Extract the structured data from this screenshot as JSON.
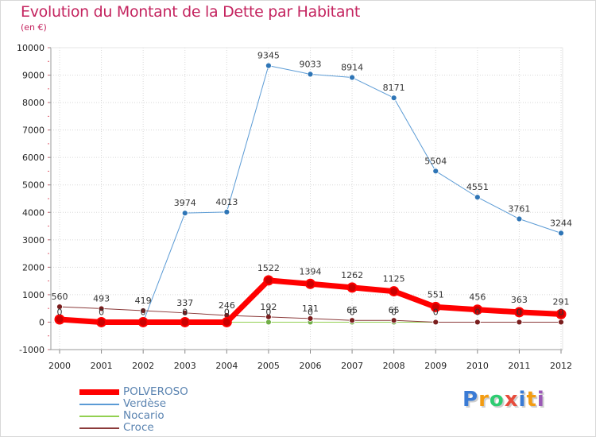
{
  "header": {
    "title": "Evolution du Montant de la Dette par Habitant",
    "subtitle": "(en €)"
  },
  "logo": {
    "text": "Proxiti",
    "colors": [
      "#3a7bd5",
      "#f39c12",
      "#2ecc71",
      "#e74c3c",
      "#3a7bd5",
      "#f39c12",
      "#9b59b6"
    ]
  },
  "chart_data": {
    "type": "line",
    "title": "Evolution du Montant de la Dette par Habitant",
    "subtitle": "(en €)",
    "x": [
      "2000",
      "2001",
      "2002",
      "2003",
      "2004",
      "2005",
      "2006",
      "2007",
      "2008",
      "2009",
      "2010",
      "2011",
      "2012"
    ],
    "ylim": [
      -1000,
      10000
    ],
    "yticks": [
      "-1000",
      "0",
      "1000",
      "2000",
      "3000",
      "4000",
      "5000",
      "6000",
      "7000",
      "8000",
      "9000",
      "10000"
    ],
    "legend_position": "bottom-left",
    "series": [
      {
        "name": "Verdèse",
        "color": "#5b9bd5",
        "marker": "#2e75b6",
        "width": 1,
        "values": [
          0,
          0,
          0,
          3974,
          4013,
          9345,
          9033,
          8914,
          8171,
          5504,
          4551,
          3761,
          3244
        ],
        "labels": [
          "",
          "",
          "",
          "3974",
          "4013",
          "9345",
          "9033",
          "8914",
          "8171",
          "5504",
          "4551",
          "3761",
          "3244"
        ]
      },
      {
        "name": "Nocario",
        "color": "#92d050",
        "marker": "#70ad47",
        "width": 1,
        "values": [
          0,
          0,
          0,
          0,
          0,
          0,
          0,
          0,
          0,
          0,
          0,
          0,
          0
        ],
        "labels": [
          "0",
          "0",
          "0",
          "0",
          "0",
          "0",
          "0",
          "0",
          "0",
          "0",
          "0",
          "0",
          "0"
        ]
      },
      {
        "name": "Croce",
        "color": "#8b3a3a",
        "marker": "#7a1e1e",
        "width": 1,
        "values": [
          560,
          493,
          419,
          337,
          246,
          192,
          131,
          65,
          65,
          0,
          0,
          0,
          0
        ],
        "labels": [
          "560",
          "493",
          "419",
          "337",
          "246",
          "192",
          "131",
          "65",
          "65",
          "",
          "",
          "",
          ""
        ]
      },
      {
        "name": "POLVEROSO",
        "color": "#ff0000",
        "marker": "#cc0000",
        "width": 7,
        "values": [
          100,
          0,
          0,
          0,
          0,
          1522,
          1394,
          1262,
          1125,
          551,
          456,
          363,
          291
        ],
        "labels": [
          "",
          "",
          "",
          "",
          "",
          "1522",
          "1394",
          "1262",
          "1125",
          "551",
          "456",
          "363",
          "291"
        ]
      }
    ]
  },
  "legend": {
    "items": [
      {
        "label": "POLVEROSO",
        "color": "#ff0000",
        "thickness": 7
      },
      {
        "label": "Verdèse",
        "color": "#5b9bd5",
        "thickness": 2
      },
      {
        "label": "Nocario",
        "color": "#92d050",
        "thickness": 2
      },
      {
        "label": "Croce",
        "color": "#8b3a3a",
        "thickness": 2
      }
    ]
  }
}
